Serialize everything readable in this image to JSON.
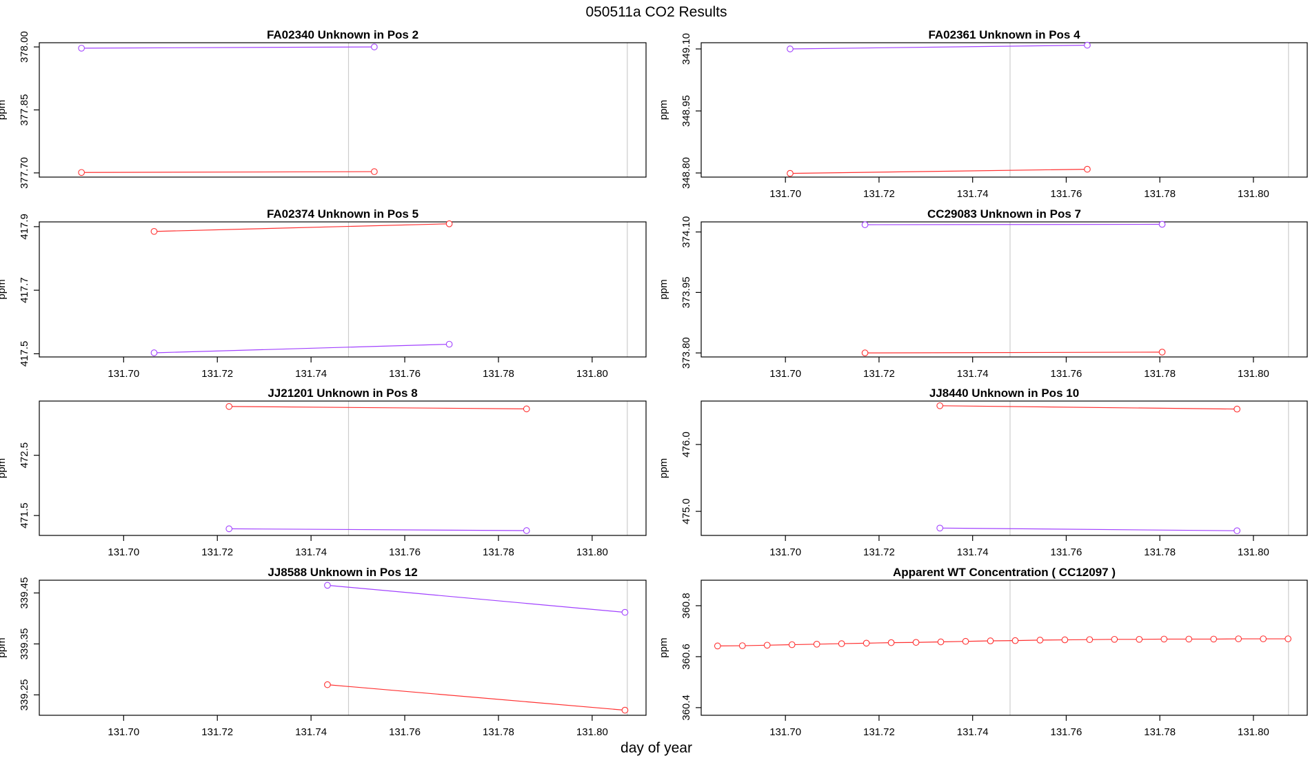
{
  "title": "050511a  CO2 Results",
  "xlabel": "day of year",
  "colors": {
    "red": "#ff3030",
    "purple": "#a040ff",
    "ref_line": "#cccccc",
    "frame": "#000000"
  },
  "chart_data": [
    {
      "type": "line",
      "title": "FA02340    Unknown in Pos 2",
      "ylabel": "ppm",
      "xlim": [
        131.682,
        131.8115
      ],
      "ylim": [
        377.69,
        378.01
      ],
      "x_ticks": [
        "131.70",
        "131.72",
        "131.74",
        "131.76",
        "131.78",
        "131.80"
      ],
      "y_ticks": [
        "377.70",
        "377.85",
        "378.00"
      ],
      "show_x_ticks": false,
      "ref_lines": [
        131.748,
        131.8075
      ],
      "series": [
        {
          "color": "purple",
          "x": [
            131.691,
            131.7535
          ],
          "y": [
            377.997,
            378.0
          ]
        },
        {
          "color": "red",
          "x": [
            131.691,
            131.7535
          ],
          "y": [
            377.701,
            377.703
          ]
        }
      ]
    },
    {
      "type": "line",
      "title": "FA02361    Unknown in Pos 4",
      "ylabel": "ppm",
      "xlim": [
        131.682,
        131.8115
      ],
      "ylim": [
        348.79,
        349.115
      ],
      "x_ticks": [
        "131.70",
        "131.72",
        "131.74",
        "131.76",
        "131.78",
        "131.80"
      ],
      "y_ticks": [
        "348.80",
        "348.95",
        "349.10"
      ],
      "show_x_ticks": true,
      "ref_lines": [
        131.748,
        131.8075
      ],
      "series": [
        {
          "color": "purple",
          "x": [
            131.701,
            131.7645
          ],
          "y": [
            349.1,
            349.109
          ]
        },
        {
          "color": "red",
          "x": [
            131.701,
            131.7645
          ],
          "y": [
            348.799,
            348.809
          ]
        }
      ]
    },
    {
      "type": "line",
      "title": "FA02374    Unknown in Pos 5",
      "ylabel": "ppm",
      "xlim": [
        131.682,
        131.8115
      ],
      "ylim": [
        417.49,
        417.915
      ],
      "x_ticks": [
        "131.70",
        "131.72",
        "131.74",
        "131.76",
        "131.78",
        "131.80"
      ],
      "y_ticks": [
        "417.5",
        "417.7",
        "417.9"
      ],
      "show_x_ticks": true,
      "ref_lines": [
        131.748,
        131.8075
      ],
      "series": [
        {
          "color": "red",
          "x": [
            131.7065,
            131.7695
          ],
          "y": [
            417.885,
            417.909
          ]
        },
        {
          "color": "purple",
          "x": [
            131.7065,
            131.7695
          ],
          "y": [
            417.503,
            417.53
          ]
        }
      ]
    },
    {
      "type": "line",
      "title": "CC29083    Unknown in Pos 7",
      "ylabel": "ppm",
      "xlim": [
        131.682,
        131.8115
      ],
      "ylim": [
        373.79,
        374.125
      ],
      "x_ticks": [
        "131.70",
        "131.72",
        "131.74",
        "131.76",
        "131.78",
        "131.80"
      ],
      "y_ticks": [
        "373.80",
        "373.95",
        "374.10"
      ],
      "show_x_ticks": true,
      "ref_lines": [
        131.748,
        131.8075
      ],
      "series": [
        {
          "color": "purple",
          "x": [
            131.717,
            131.7805
          ],
          "y": [
            374.118,
            374.119
          ]
        },
        {
          "color": "red",
          "x": [
            131.717,
            131.7805
          ],
          "y": [
            373.8,
            373.802
          ]
        }
      ]
    },
    {
      "type": "line",
      "title": "JJ21201    Unknown in Pos 8",
      "ylabel": "ppm",
      "xlim": [
        131.682,
        131.8115
      ],
      "ylim": [
        471.17,
        473.4
      ],
      "x_ticks": [
        "131.70",
        "131.72",
        "131.74",
        "131.76",
        "131.78",
        "131.80"
      ],
      "y_ticks": [
        "471.5",
        "472.5"
      ],
      "show_x_ticks": true,
      "ref_lines": [
        131.748,
        131.8075
      ],
      "series": [
        {
          "color": "red",
          "x": [
            131.7225,
            131.786
          ],
          "y": [
            473.31,
            473.27
          ]
        },
        {
          "color": "purple",
          "x": [
            131.7225,
            131.786
          ],
          "y": [
            471.28,
            471.25
          ]
        }
      ]
    },
    {
      "type": "line",
      "title": "JJ8440    Unknown in Pos 10",
      "ylabel": "ppm",
      "xlim": [
        131.682,
        131.8115
      ],
      "ylim": [
        474.64,
        476.65
      ],
      "x_ticks": [
        "131.70",
        "131.72",
        "131.74",
        "131.76",
        "131.78",
        "131.80"
      ],
      "y_ticks": [
        "475.0",
        "476.0"
      ],
      "show_x_ticks": true,
      "ref_lines": [
        131.748,
        131.8075
      ],
      "series": [
        {
          "color": "red",
          "x": [
            131.733,
            131.7965
          ],
          "y": [
            476.58,
            476.53
          ]
        },
        {
          "color": "purple",
          "x": [
            131.733,
            131.7965
          ],
          "y": [
            474.75,
            474.71
          ]
        }
      ]
    },
    {
      "type": "line",
      "title": "JJ8588    Unknown in Pos 12",
      "ylabel": "ppm",
      "xlim": [
        131.682,
        131.8115
      ],
      "ylim": [
        339.21,
        339.475
      ],
      "x_ticks": [
        "131.70",
        "131.72",
        "131.74",
        "131.76",
        "131.78",
        "131.80"
      ],
      "y_ticks": [
        "339.25",
        "339.35",
        "339.45"
      ],
      "show_x_ticks": true,
      "ref_lines": [
        131.748,
        131.8075
      ],
      "series": [
        {
          "color": "purple",
          "x": [
            131.7435,
            131.807
          ],
          "y": [
            339.465,
            339.412
          ]
        },
        {
          "color": "red",
          "x": [
            131.7435,
            131.807
          ],
          "y": [
            339.27,
            339.22
          ]
        }
      ]
    },
    {
      "type": "scatter",
      "title": "Apparent WT Concentration ( CC12097 )",
      "ylabel": "ppm",
      "xlim": [
        131.682,
        131.8115
      ],
      "ylim": [
        360.37,
        360.9
      ],
      "x_ticks": [
        "131.70",
        "131.72",
        "131.74",
        "131.76",
        "131.78",
        "131.80"
      ],
      "y_ticks": [
        "360.4",
        "360.6",
        "360.8"
      ],
      "show_x_ticks": true,
      "ref_lines": [
        131.748,
        131.8075
      ],
      "connected": true,
      "series": [
        {
          "color": "red",
          "x": [
            131.6855,
            131.6908,
            131.6961,
            131.7014,
            131.7067,
            131.712,
            131.7173,
            131.7226,
            131.7279,
            131.7332,
            131.7385,
            131.7438,
            131.7491,
            131.7544,
            131.7597,
            131.765,
            131.7703,
            131.7756,
            131.7809,
            131.7862,
            131.7915,
            131.7968,
            131.8021,
            131.8074
          ],
          "y": [
            360.642,
            360.643,
            360.645,
            360.647,
            360.649,
            360.651,
            360.653,
            360.655,
            360.656,
            360.658,
            360.66,
            360.662,
            360.663,
            360.665,
            360.666,
            360.667,
            360.668,
            360.668,
            360.669,
            360.669,
            360.669,
            360.67,
            360.67,
            360.67
          ]
        }
      ]
    }
  ]
}
